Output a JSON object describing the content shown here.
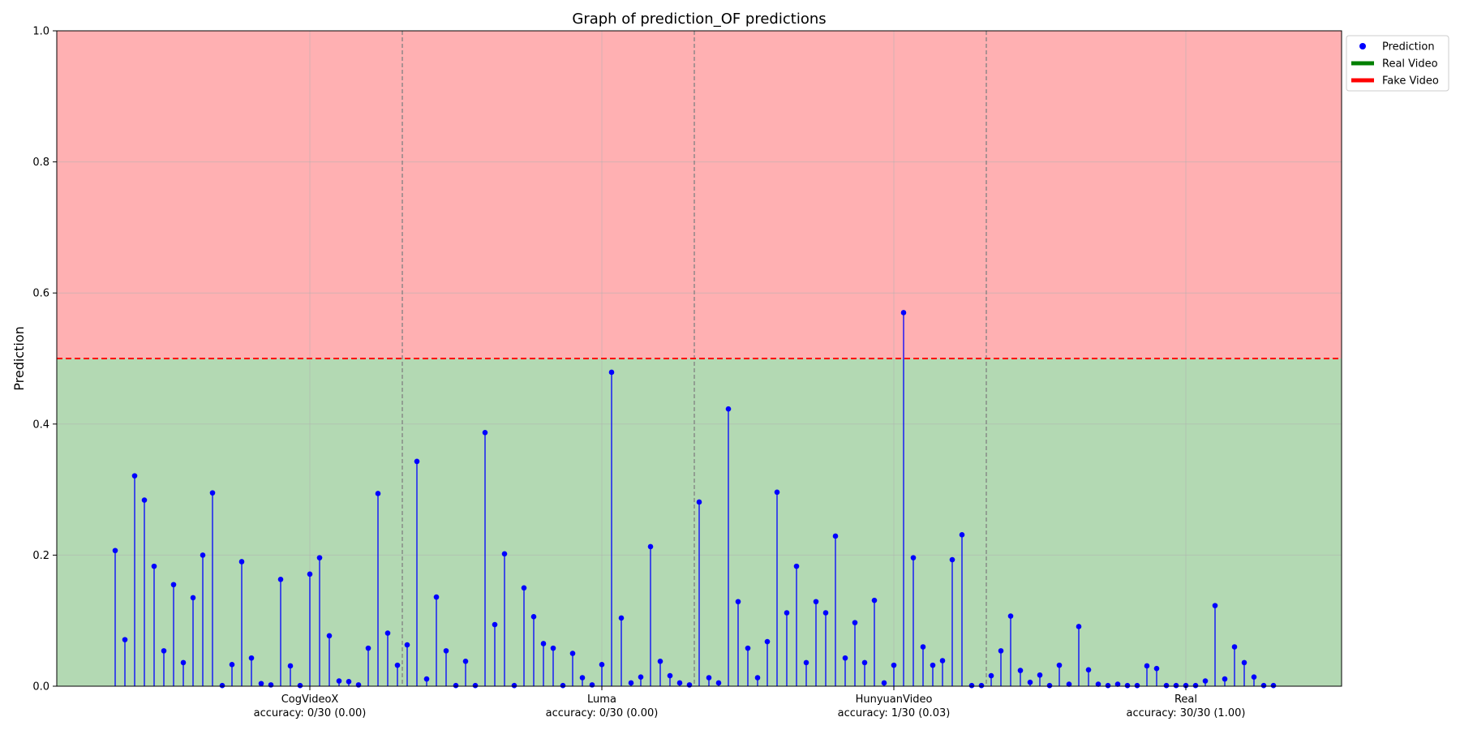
{
  "chart_data": {
    "type": "stem",
    "title": "Graph of prediction_OF predictions",
    "ylabel": "Prediction",
    "xlabel": "",
    "ylim": [
      0,
      1
    ],
    "xlim": [
      -6,
      126
    ],
    "y_ticks": [
      "0.0",
      "0.2",
      "0.4",
      "0.6",
      "0.8",
      "1.0"
    ],
    "y_tick_values": [
      0,
      0.2,
      0.4,
      0.6,
      0.8,
      1.0
    ],
    "threshold": 0.5,
    "grid": true,
    "legend_position": "outside-top-right",
    "legend": [
      {
        "label": "Prediction",
        "marker": "dot",
        "color": "#0000ff"
      },
      {
        "label": "Real Video",
        "marker": "line",
        "color": "#008000"
      },
      {
        "label": "Fake Video",
        "marker": "line",
        "color": "#ff0000"
      }
    ],
    "regions": {
      "real_color": "#b3d9b3",
      "fake_color": "#ffb0b2"
    },
    "group_boundaries": [
      29.5,
      59.5,
      89.5
    ],
    "groups": [
      {
        "name": "CogVideoX",
        "accuracy": "accuracy: 0/30 (0.00)",
        "center": 20
      },
      {
        "name": "Luma",
        "accuracy": "accuracy: 0/30 (0.00)",
        "center": 50
      },
      {
        "name": "HunyuanVideo",
        "accuracy": "accuracy: 1/30 (0.03)",
        "center": 80
      },
      {
        "name": "Real",
        "accuracy": "accuracy: 30/30 (1.00)",
        "center": 110
      }
    ],
    "series": [
      {
        "name": "Prediction",
        "color": "#0000ff",
        "x_start": 0,
        "values": [
          0.207,
          0.071,
          0.321,
          0.284,
          0.183,
          0.054,
          0.155,
          0.036,
          0.135,
          0.2,
          0.295,
          0.001,
          0.033,
          0.19,
          0.043,
          0.004,
          0.002,
          0.163,
          0.031,
          0.001,
          0.171,
          0.196,
          0.077,
          0.008,
          0.007,
          0.002,
          0.058,
          0.294,
          0.081,
          0.032,
          0.063,
          0.343,
          0.011,
          0.136,
          0.054,
          0.001,
          0.038,
          0.001,
          0.387,
          0.094,
          0.202,
          0.001,
          0.15,
          0.106,
          0.065,
          0.058,
          0.001,
          0.05,
          0.013,
          0.002,
          0.033,
          0.479,
          0.104,
          0.005,
          0.014,
          0.213,
          0.038,
          0.016,
          0.005,
          0.002,
          0.281,
          0.013,
          0.005,
          0.423,
          0.129,
          0.058,
          0.013,
          0.068,
          0.296,
          0.112,
          0.183,
          0.036,
          0.129,
          0.112,
          0.229,
          0.043,
          0.097,
          0.036,
          0.131,
          0.005,
          0.032,
          0.57,
          0.196,
          0.06,
          0.032,
          0.039,
          0.193,
          0.231,
          0.001,
          0.001,
          0.016,
          0.054,
          0.107,
          0.024,
          0.006,
          0.017,
          0.001,
          0.032,
          0.003,
          0.091,
          0.025,
          0.003,
          0.001,
          0.003,
          0.001,
          0.001,
          0.031,
          0.027,
          0.001,
          0.001,
          0.001,
          0.001,
          0.008,
          0.123,
          0.011,
          0.06,
          0.036,
          0.014,
          0.001,
          0.001
        ]
      }
    ]
  }
}
